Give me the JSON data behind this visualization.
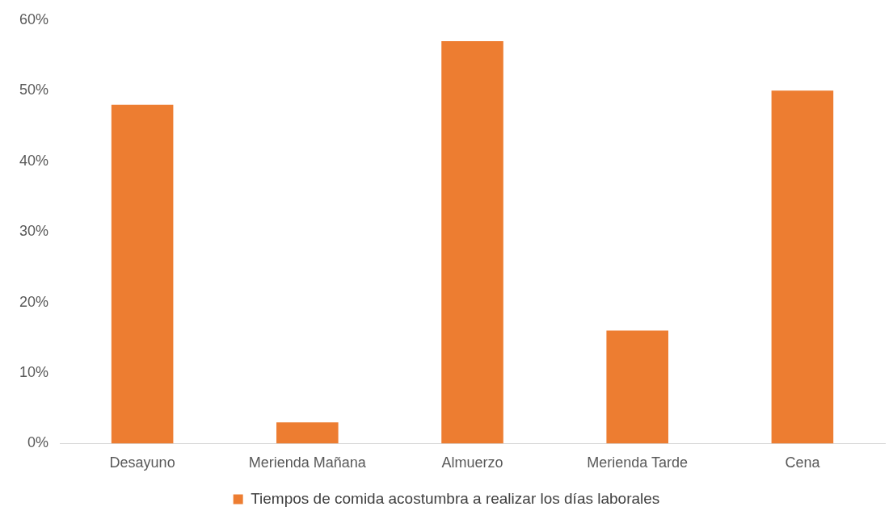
{
  "chart_data": {
    "type": "bar",
    "categories": [
      "Desayuno",
      "Merienda Mañana",
      "Almuerzo",
      "Merienda Tarde",
      "Cena"
    ],
    "series": [
      {
        "name": "Tiempos de comida acostumbra a realizar los días laborales",
        "color": "#ed7d31",
        "values": [
          48,
          3,
          57,
          16,
          50
        ]
      }
    ],
    "ylim": [
      0,
      60
    ],
    "yticks": [
      {
        "value": 0,
        "label": "0%"
      },
      {
        "value": 10,
        "label": "10%"
      },
      {
        "value": 20,
        "label": "20%"
      },
      {
        "value": 30,
        "label": "30%"
      },
      {
        "value": 40,
        "label": "40%"
      },
      {
        "value": 50,
        "label": "50%"
      },
      {
        "value": 60,
        "label": "60%"
      }
    ],
    "grid": false,
    "legend": "bottom"
  }
}
